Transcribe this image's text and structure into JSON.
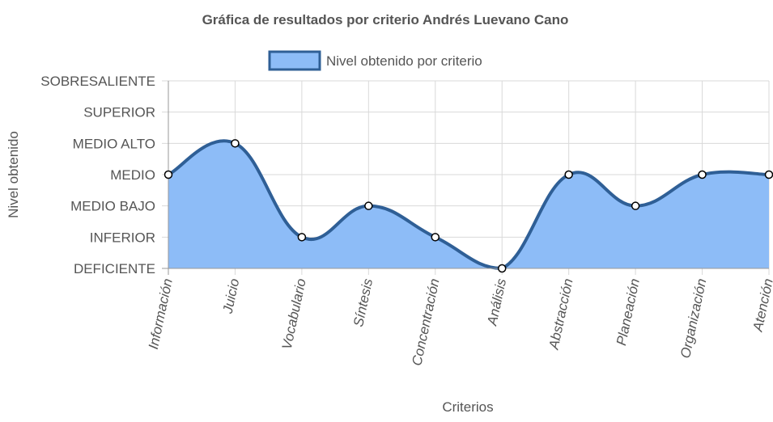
{
  "chart_data": {
    "type": "area",
    "title": "Gráfica de resultados por criterio Andrés Luevano Cano",
    "xlabel": "Criterios",
    "ylabel": "Nivel obtenido",
    "categories": [
      "Información",
      "Juicio",
      "Vocabulario",
      "Síntesis",
      "Concentración",
      "Análisis",
      "Abstracción",
      "Planeación",
      "Organización",
      "Atención"
    ],
    "y_levels": [
      "DEFICIENTE",
      "INFERIOR",
      "MEDIO BAJO",
      "MEDIO",
      "MEDIO ALTO",
      "SUPERIOR",
      "SOBRESALIENTE"
    ],
    "ylim": [
      0,
      6
    ],
    "series": [
      {
        "name": "Nivel obtenido por criterio",
        "values": [
          3,
          4,
          1,
          2,
          1,
          0,
          3,
          2,
          3,
          3
        ]
      }
    ],
    "grid": true,
    "legend_position": "top",
    "colors": {
      "fill": "#8dbcf7",
      "line": "#2f5f96",
      "grid": "#d9d9d9",
      "axis": "#999999",
      "text": "#555555"
    }
  }
}
